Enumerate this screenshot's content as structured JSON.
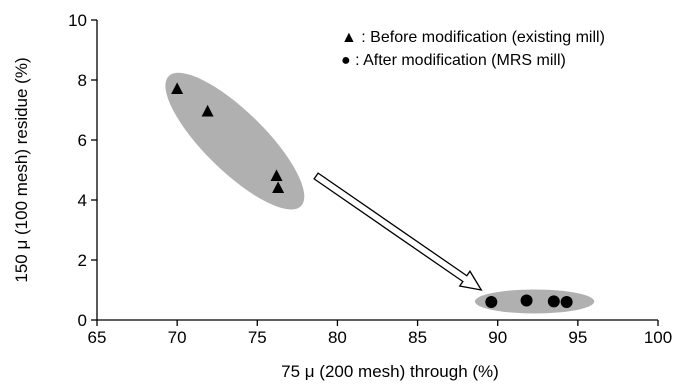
{
  "chart_data": {
    "type": "scatter",
    "title": "",
    "xlabel": "75 μ  (200 mesh) through (%)",
    "ylabel": "150 μ  (100 mesh) residue  (%)",
    "xlim": [
      65,
      100
    ],
    "ylim": [
      0,
      10
    ],
    "xticks": [
      "65",
      "70",
      "75",
      "80",
      "85",
      "90",
      "95",
      "100"
    ],
    "yticks": [
      "0",
      "2",
      "4",
      "6",
      "8",
      "10"
    ],
    "grid": false,
    "legend_position": "top-right",
    "series": [
      {
        "name": "Before modification (existing mill)",
        "legend_label": "▲ :  Before modification (existing mill)",
        "marker": "triangle",
        "color": "#000000",
        "points": [
          {
            "x": 70.0,
            "y": 7.7
          },
          {
            "x": 71.9,
            "y": 6.95
          },
          {
            "x": 76.2,
            "y": 4.8
          },
          {
            "x": 76.3,
            "y": 4.4
          }
        ]
      },
      {
        "name": "After modification (MRS mill)",
        "legend_label": "● :  After modification (MRS mill)",
        "marker": "circle",
        "color": "#000000",
        "points": [
          {
            "x": 89.6,
            "y": 0.6
          },
          {
            "x": 91.8,
            "y": 0.65
          },
          {
            "x": 93.5,
            "y": 0.62
          },
          {
            "x": 94.3,
            "y": 0.6
          }
        ]
      }
    ],
    "annotations": {
      "cluster_color": "#b0b0b0",
      "arrow": "hollow arrow from the before-modification cluster to the after-modification cluster"
    }
  }
}
